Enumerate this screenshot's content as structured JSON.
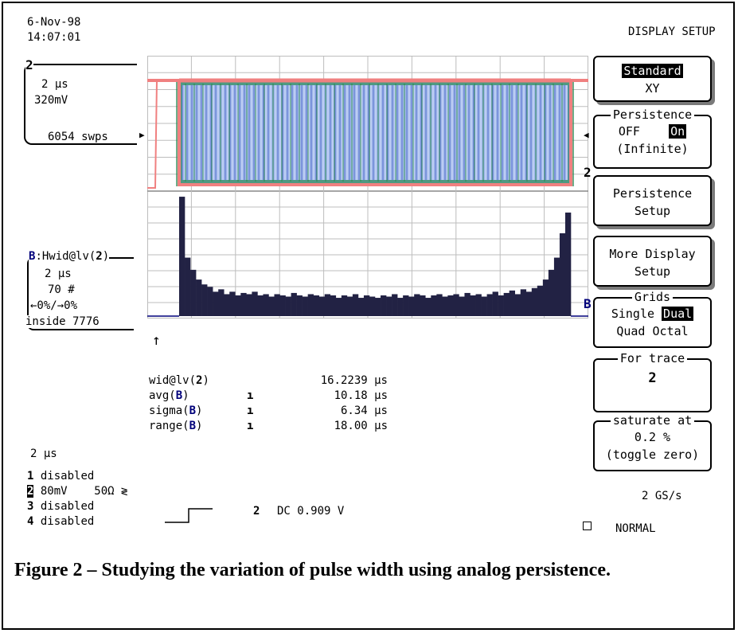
{
  "header": {
    "date": "6-Nov-98",
    "time": "14:07:01",
    "menu_title": "DISPLAY SETUP"
  },
  "trace_info": {
    "channel": "2",
    "timebase": "2 µs",
    "volts": "320mV",
    "sweeps": "6054 swps"
  },
  "histogram_info": {
    "label_b": "B",
    "label_rest": ":Hwid@lv(",
    "label_ch": "2",
    "label_close": ")",
    "timebase": "2 µs",
    "count": "70 #",
    "range": "←0%/→0%",
    "inside": "inside 7776"
  },
  "trace_marker": "2",
  "hist_marker": "B",
  "measurements": [
    {
      "name": "wid@lv(",
      "ch": "2",
      "close": ")",
      "mark": "",
      "value": "16.2239 µs"
    },
    {
      "name": "avg(",
      "ch": "B",
      "close": ")",
      "mark": "ı",
      "value": "10.18 µs"
    },
    {
      "name": "sigma(",
      "ch": "B",
      "close": ")",
      "mark": "ı",
      "value": "6.34 µs"
    },
    {
      "name": "range(",
      "ch": "B",
      "close": ")",
      "mark": "ı",
      "value": "18.00 µs"
    }
  ],
  "timebase_bottom": "2 µs",
  "channels": [
    {
      "num": "1",
      "text": "disabled"
    },
    {
      "num": "2",
      "text": "80mV    50Ω ≷"
    },
    {
      "num": "3",
      "text": "disabled"
    },
    {
      "num": "4",
      "text": "disabled"
    }
  ],
  "trigger": {
    "channel": "2",
    "coupling": "DC 0.909 V"
  },
  "sample_rate": "2 GS/s",
  "trigger_mode": "NORMAL",
  "menu": {
    "display_mode": {
      "selected": "Standard",
      "other": "XY"
    },
    "persistence": {
      "title": "Persistence",
      "off": "OFF",
      "on": "On",
      "note": "(Infinite)"
    },
    "persistence_setup": [
      "Persistence",
      "Setup"
    ],
    "more_display": [
      "More Display",
      "Setup"
    ],
    "grids": {
      "title": "Grids",
      "single": "Single",
      "dual": "Dual",
      "quad": "Quad",
      "octal": "Octal"
    },
    "for_trace": {
      "title": "For trace",
      "value": "2"
    },
    "saturate": {
      "title": "saturate at",
      "value": "0.2 %",
      "note": "(toggle zero)"
    }
  },
  "caption": "Figure 2 – Studying the variation of pulse width using analog persistence.",
  "chart_data": {
    "type": "bar",
    "title": "",
    "xlabel": "",
    "ylabel": "",
    "bins": 70,
    "values": [
      98,
      48,
      38,
      30,
      26,
      24,
      20,
      22,
      18,
      20,
      17,
      19,
      18,
      20,
      17,
      18,
      16,
      18,
      17,
      16,
      19,
      17,
      16,
      18,
      17,
      16,
      18,
      17,
      15,
      17,
      16,
      18,
      15,
      17,
      16,
      15,
      17,
      16,
      18,
      15,
      17,
      16,
      18,
      17,
      15,
      17,
      18,
      16,
      17,
      18,
      16,
      19,
      17,
      18,
      16,
      18,
      20,
      17,
      19,
      21,
      18,
      22,
      20,
      23,
      25,
      30,
      38,
      48,
      68,
      85
    ],
    "ylim": [
      0,
      100
    ]
  }
}
